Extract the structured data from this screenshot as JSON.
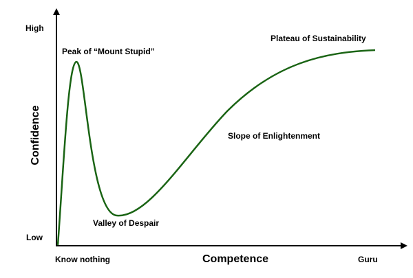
{
  "title": null,
  "axes": {
    "y_title": "Confidence",
    "x_title": "Competence",
    "y_high": "High",
    "y_low": "Low",
    "x_low": "Know nothing",
    "x_high": "Guru"
  },
  "annotations": [
    "Peak of “Mount Stupid”",
    "Valley of Despair",
    "Slope of Enlightenment",
    "Plateau of Sustainability"
  ]
}
